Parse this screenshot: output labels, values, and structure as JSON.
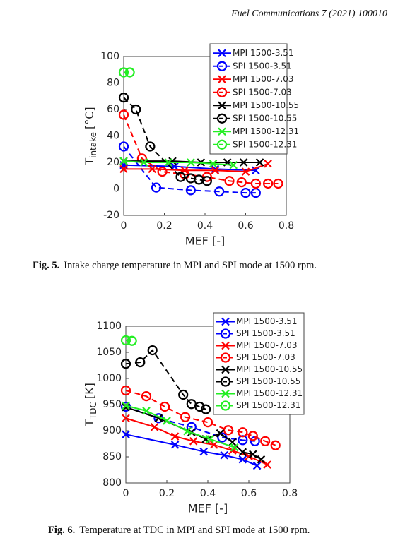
{
  "header": "Fuel Communications 7 (2021) 100010",
  "chart_data": [
    {
      "type": "line",
      "ylabel": {
        "main": "T",
        "sub": "intake",
        "unit": "[°C]"
      },
      "xlabel": "MEF [-]",
      "xlim": [
        0,
        0.8
      ],
      "xticks": [
        0,
        0.2,
        0.4,
        0.6,
        0.8
      ],
      "ylim": [
        -20,
        100
      ],
      "yticks": [
        -20,
        0,
        20,
        40,
        60,
        80,
        100
      ],
      "legend": "upper right",
      "series": [
        {
          "name": "MPI 1500-3.51",
          "color": "#0000ff",
          "marker": "x",
          "linestyle": "solid",
          "x": [
            0,
            0.25,
            0.45,
            0.65
          ],
          "values": [
            18,
            17,
            15,
            14
          ]
        },
        {
          "name": "SPI 1500-3.51",
          "color": "#0000ff",
          "marker": "o",
          "linestyle": "dashed",
          "x": [
            0,
            0.16,
            0.33,
            0.47,
            0.6,
            0.65
          ],
          "values": [
            32,
            1,
            -1,
            -2,
            -3,
            -3
          ]
        },
        {
          "name": "MPI 1500-7.03",
          "color": "#ff0000",
          "marker": "x",
          "linestyle": "solid",
          "x": [
            0,
            0.14,
            0.3,
            0.45,
            0.6,
            0.71
          ],
          "values": [
            15,
            15,
            14,
            14,
            13,
            19
          ]
        },
        {
          "name": "SPI 1500-7.03",
          "color": "#ff0000",
          "marker": "o",
          "linestyle": "dashed",
          "x": [
            0,
            0.09,
            0.19,
            0.3,
            0.41,
            0.52,
            0.58,
            0.65,
            0.71,
            0.76
          ],
          "values": [
            56,
            23,
            13,
            11,
            9,
            6,
            5,
            4,
            4,
            4
          ]
        },
        {
          "name": "MPI 1500-10.55",
          "color": "#000000",
          "marker": "x",
          "linestyle": "solid",
          "x": [
            0,
            0.24,
            0.38,
            0.51,
            0.59,
            0.67
          ],
          "values": [
            21,
            21,
            20,
            20,
            20,
            20
          ]
        },
        {
          "name": "SPI 1500-10.55",
          "color": "#000000",
          "marker": "o",
          "linestyle": "dashed",
          "x": [
            0,
            0.06,
            0.13,
            0.28,
            0.33,
            0.37,
            0.41
          ],
          "values": [
            69,
            60,
            32,
            9,
            8,
            7,
            6
          ]
        },
        {
          "name": "MPI 1500-12.31",
          "color": "#22ee22",
          "marker": "x",
          "linestyle": "solid",
          "x": [
            0,
            0.1,
            0.22,
            0.33,
            0.44,
            0.54
          ],
          "values": [
            21,
            20,
            20,
            20,
            19,
            18
          ]
        },
        {
          "name": "SPI 1500-12.31",
          "color": "#22ee22",
          "marker": "o",
          "linestyle": "dashed",
          "x": [
            0,
            0.03
          ],
          "values": [
            88,
            88
          ]
        }
      ]
    },
    {
      "type": "line",
      "ylabel": {
        "main": "T",
        "sub": "TDC",
        "unit": "[K]"
      },
      "xlabel": "MEF [-]",
      "xlim": [
        0,
        0.8
      ],
      "xticks": [
        0,
        0.2,
        0.4,
        0.6,
        0.8
      ],
      "ylim": [
        800,
        1100
      ],
      "yticks": [
        800,
        850,
        900,
        950,
        1000,
        1050,
        1100
      ],
      "legend": "upper right",
      "series": [
        {
          "name": "MPI 1500-3.51",
          "color": "#0000ff",
          "marker": "x",
          "linestyle": "solid",
          "x": [
            0,
            0.24,
            0.38,
            0.48,
            0.57,
            0.64
          ],
          "values": [
            893,
            873,
            860,
            853,
            845,
            833
          ]
        },
        {
          "name": "SPI 1500-3.51",
          "color": "#0000ff",
          "marker": "o",
          "linestyle": "dashed",
          "x": [
            0,
            0.16,
            0.32,
            0.47,
            0.57,
            0.63
          ],
          "values": [
            946,
            924,
            907,
            887,
            882,
            880
          ]
        },
        {
          "name": "MPI 1500-7.03",
          "color": "#ff0000",
          "marker": "x",
          "linestyle": "solid",
          "x": [
            0,
            0.14,
            0.24,
            0.33,
            0.43,
            0.52,
            0.6,
            0.69
          ],
          "values": [
            924,
            907,
            889,
            880,
            873,
            862,
            851,
            835
          ]
        },
        {
          "name": "SPI 1500-7.03",
          "color": "#ff0000",
          "marker": "o",
          "linestyle": "dashed",
          "x": [
            0,
            0.1,
            0.19,
            0.29,
            0.4,
            0.5,
            0.57,
            0.62,
            0.68,
            0.73
          ],
          "values": [
            977,
            966,
            946,
            926,
            916,
            901,
            897,
            890,
            880,
            872
          ]
        },
        {
          "name": "MPI 1500-10.55",
          "color": "#000000",
          "marker": "x",
          "linestyle": "solid",
          "x": [
            0,
            0.16,
            0.32,
            0.39,
            0.46,
            0.52,
            0.57,
            0.62,
            0.66
          ],
          "values": [
            945,
            924,
            897,
            884,
            895,
            878,
            859,
            855,
            845
          ]
        },
        {
          "name": "SPI 1500-10.55",
          "color": "#000000",
          "marker": "o",
          "linestyle": "dashed",
          "x": [
            0,
            0.07,
            0.13,
            0.28,
            0.32,
            0.36,
            0.39
          ],
          "values": [
            1028,
            1031,
            1054,
            969,
            951,
            946,
            941
          ]
        },
        {
          "name": "MPI 1500-12.31",
          "color": "#22ee22",
          "marker": "x",
          "linestyle": "solid",
          "x": [
            0,
            0.1,
            0.2,
            0.3,
            0.41,
            0.53
          ],
          "values": [
            948,
            938,
            919,
            899,
            884,
            868
          ]
        },
        {
          "name": "SPI 1500-12.31",
          "color": "#22ee22",
          "marker": "o",
          "linestyle": "dashed",
          "x": [
            0,
            0.03
          ],
          "values": [
            1073,
            1072
          ]
        }
      ]
    }
  ],
  "captions": [
    {
      "label": "Fig. 5.",
      "text": "Intake charge temperature in MPI and SPI mode at 1500 rpm."
    },
    {
      "label": "Fig. 6.",
      "text": "Temperature at TDC in MPI and SPI mode at 1500 rpm."
    }
  ]
}
